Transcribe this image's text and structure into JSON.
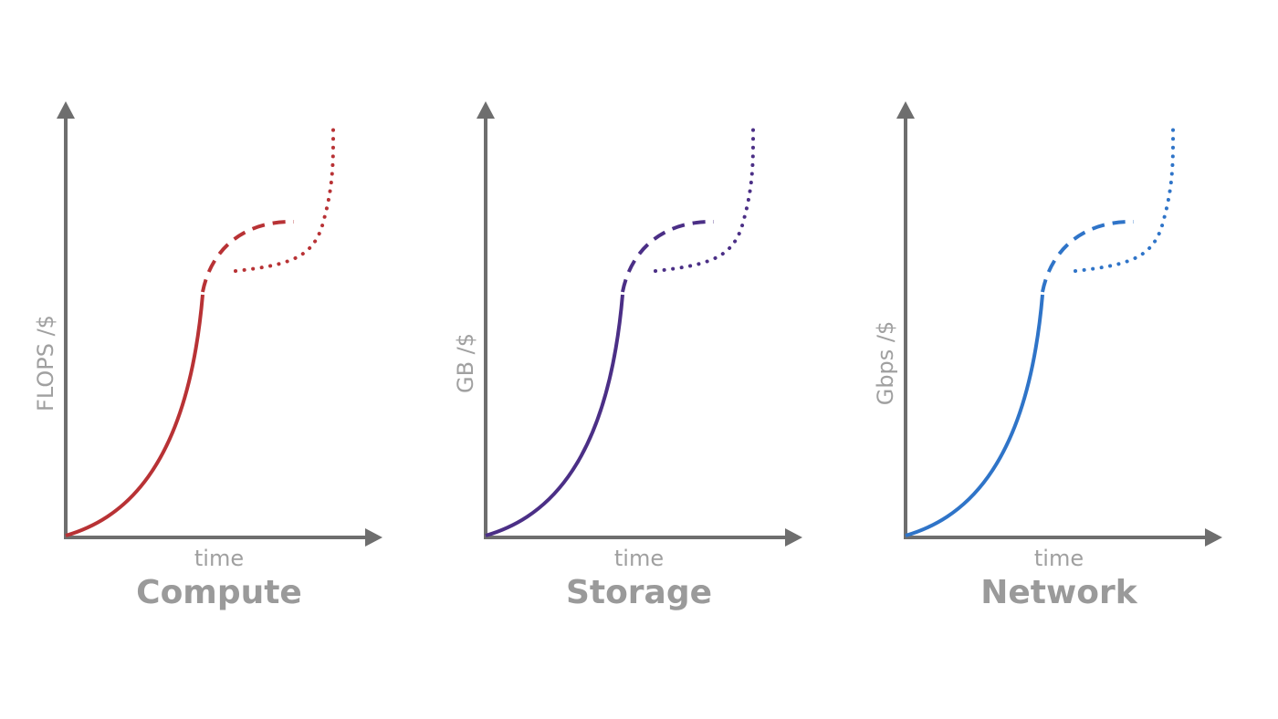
{
  "panels": [
    {
      "title": "Compute",
      "ylabel": "FLOPS /$",
      "xlabel": "time",
      "color": "#B83235"
    },
    {
      "title": "Storage",
      "ylabel": "GB /$",
      "xlabel": "time",
      "color": "#4B2F86"
    },
    {
      "title": "Network",
      "ylabel": "Gbps /$",
      "xlabel": "time",
      "color": "#2F74C8"
    }
  ]
}
